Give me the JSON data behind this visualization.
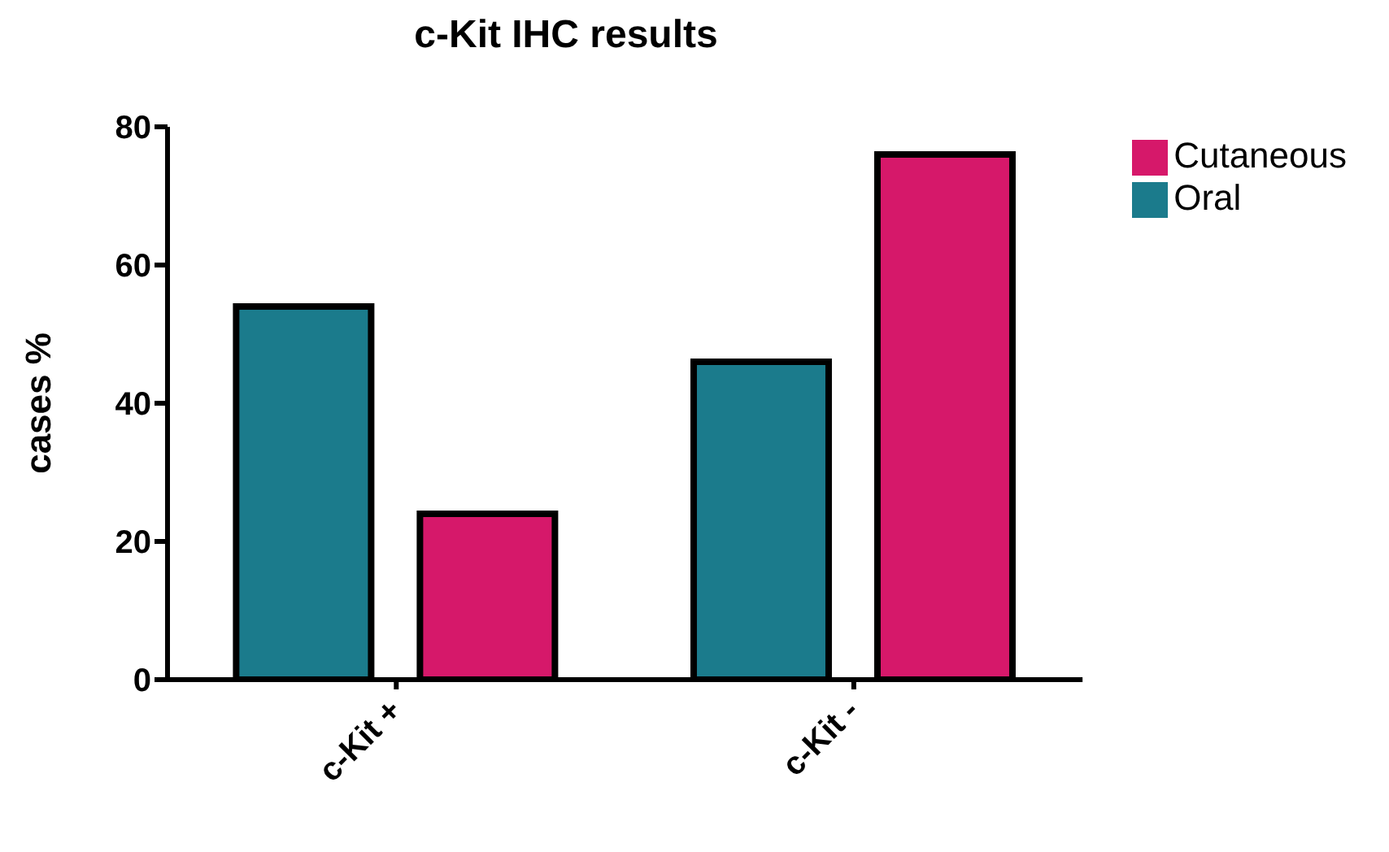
{
  "chart_data": {
    "type": "bar",
    "title": "c-Kit IHC results",
    "ylabel": "cases %",
    "categories": [
      "c-Kit +",
      "c-Kit -"
    ],
    "series": [
      {
        "name": "Oral",
        "color": "#1b7b8c",
        "values": [
          54,
          46
        ]
      },
      {
        "name": "Cutaneous",
        "color": "#d6186a",
        "values": [
          24,
          76
        ]
      }
    ],
    "ylim": [
      0,
      80
    ],
    "yticks": [
      0,
      20,
      40,
      60,
      80
    ],
    "legend": "top right",
    "grid": false
  }
}
